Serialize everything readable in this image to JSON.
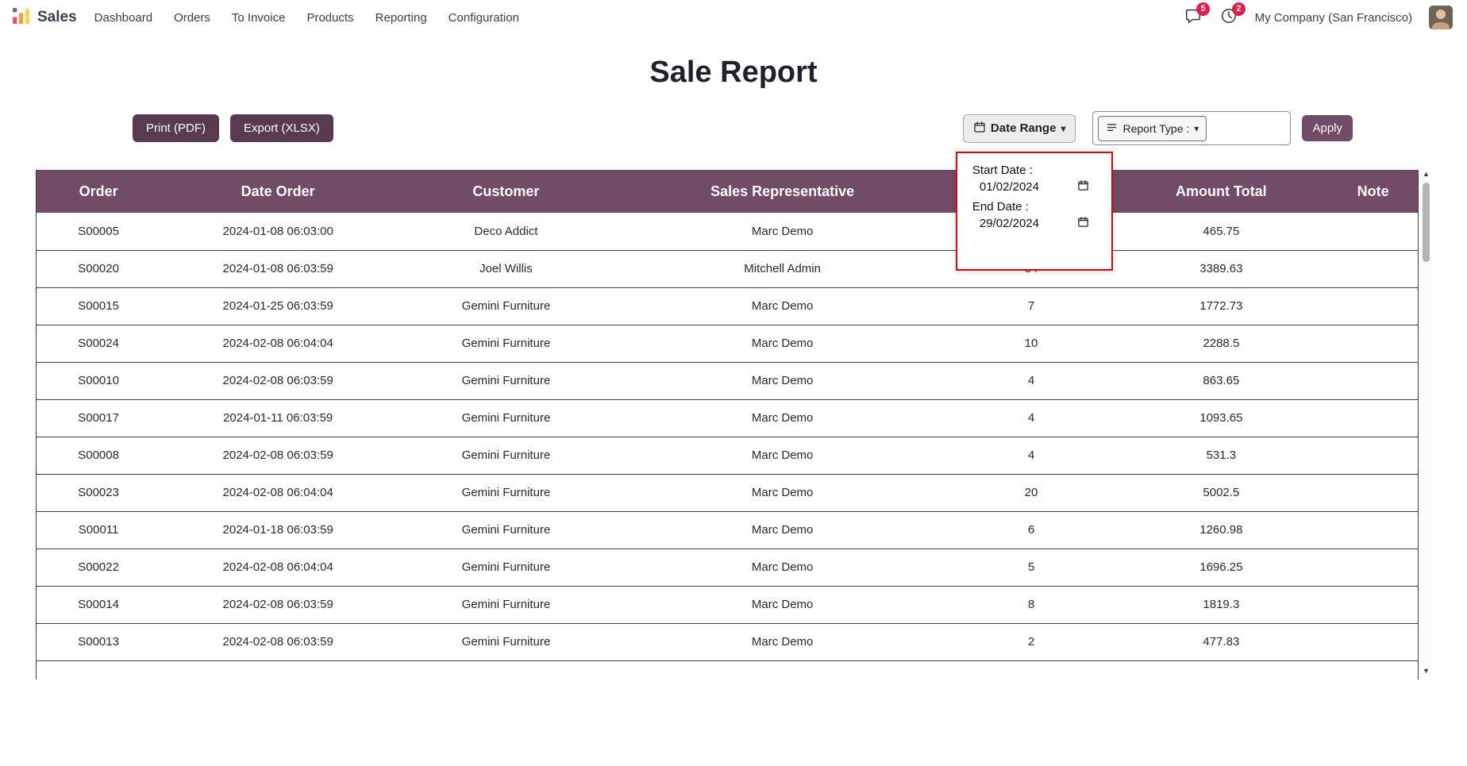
{
  "colors": {
    "accent": "#714B67",
    "header-bg": "#714B67",
    "button-dark": "#5a3a50",
    "badge-red": "#e11d48",
    "popup-border": "#e60000",
    "table-border": "#433a42",
    "brand-text": "#463a50",
    "title-text": "#251f2d"
  },
  "icons": {
    "caret_down": "▾",
    "arrow_up": "▲",
    "arrow_down": "▼"
  },
  "navbar": {
    "brand": "Sales",
    "menu": [
      "Dashboard",
      "Orders",
      "To Invoice",
      "Products",
      "Reporting",
      "Configuration"
    ],
    "messages_badge": "5",
    "activities_badge": "2",
    "company": "My Company (San Francisco)"
  },
  "page": {
    "title": "Sale Report"
  },
  "toolbar": {
    "print": "Print (PDF)",
    "export": "Export (XLSX)",
    "date_range": "Date Range",
    "report_type": "Report Type :",
    "apply": "Apply"
  },
  "date_popup": {
    "start_label": "Start Date :",
    "start_value": "01/02/2024",
    "end_label": "End Date :",
    "end_value": "29/02/2024"
  },
  "table": {
    "headers": [
      "Order",
      "Date Order",
      "Customer",
      "Sales Representative",
      "",
      "Amount Total",
      "Note"
    ],
    "header_keys": [
      "order",
      "date-order",
      "customer",
      "sales-representative",
      "quantity",
      "amount-total",
      "note"
    ],
    "rows": [
      [
        "S00005",
        "2024-01-08 06:03:00",
        "Deco Addict",
        "Marc Demo",
        "",
        "465.75",
        ""
      ],
      [
        "S00020",
        "2024-01-08 06:03:59",
        "Joel Willis",
        "Mitchell Admin",
        "54",
        "3389.63",
        ""
      ],
      [
        "S00015",
        "2024-01-25 06:03:59",
        "Gemini Furniture",
        "Marc Demo",
        "7",
        "1772.73",
        ""
      ],
      [
        "S00024",
        "2024-02-08 06:04:04",
        "Gemini Furniture",
        "Marc Demo",
        "10",
        "2288.5",
        ""
      ],
      [
        "S00010",
        "2024-02-08 06:03:59",
        "Gemini Furniture",
        "Marc Demo",
        "4",
        "863.65",
        ""
      ],
      [
        "S00017",
        "2024-01-11 06:03:59",
        "Gemini Furniture",
        "Marc Demo",
        "4",
        "1093.65",
        ""
      ],
      [
        "S00008",
        "2024-02-08 06:03:59",
        "Gemini Furniture",
        "Marc Demo",
        "4",
        "531.3",
        ""
      ],
      [
        "S00023",
        "2024-02-08 06:04:04",
        "Gemini Furniture",
        "Marc Demo",
        "20",
        "5002.5",
        ""
      ],
      [
        "S00011",
        "2024-01-18 06:03:59",
        "Gemini Furniture",
        "Marc Demo",
        "6",
        "1260.98",
        ""
      ],
      [
        "S00022",
        "2024-02-08 06:04:04",
        "Gemini Furniture",
        "Marc Demo",
        "5",
        "1696.25",
        ""
      ],
      [
        "S00014",
        "2024-02-08 06:03:59",
        "Gemini Furniture",
        "Marc Demo",
        "8",
        "1819.3",
        ""
      ],
      [
        "S00013",
        "2024-02-08 06:03:59",
        "Gemini Furniture",
        "Marc Demo",
        "2",
        "477.83",
        ""
      ]
    ]
  }
}
